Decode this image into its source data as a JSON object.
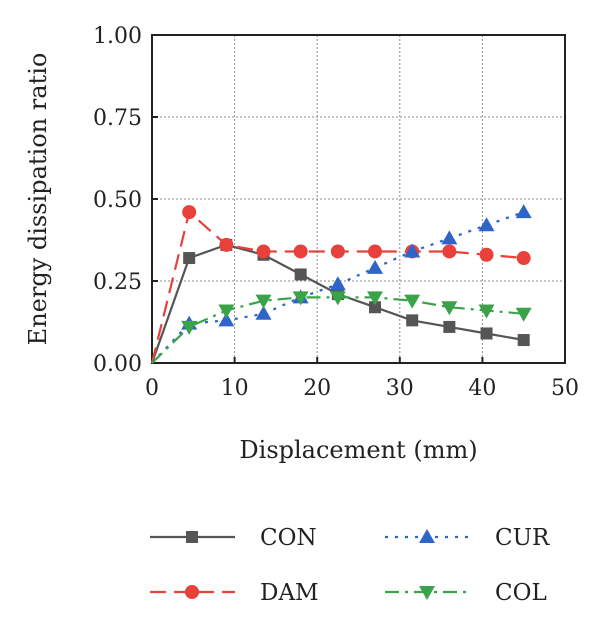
{
  "chart_data": {
    "type": "line",
    "xlabel": "Displacement (mm)",
    "ylabel": "Energy dissipation ratio",
    "xlim": [
      0,
      50
    ],
    "ylim": [
      0,
      1.0
    ],
    "x_ticks": [
      "0",
      "10",
      "20",
      "30",
      "40",
      "50"
    ],
    "y_ticks": [
      "0.00",
      "0.25",
      "0.50",
      "0.75",
      "1.00"
    ],
    "grid": true,
    "legend_position": "bottom",
    "series": [
      {
        "name": "CON",
        "color": "#555555",
        "line_style": "solid",
        "marker": "square",
        "x": [
          0,
          4.5,
          9,
          13.5,
          18,
          22.5,
          27,
          31.5,
          36,
          40.5,
          45
        ],
        "y": [
          0.0,
          0.32,
          0.36,
          0.33,
          0.27,
          0.21,
          0.17,
          0.13,
          0.11,
          0.09,
          0.07
        ]
      },
      {
        "name": "DAM",
        "color": "#e8403a",
        "line_style": "dash",
        "marker": "circle",
        "x": [
          0,
          4.5,
          9,
          13.5,
          18,
          22.5,
          27,
          31.5,
          36,
          40.5,
          45
        ],
        "y": [
          0.0,
          0.46,
          0.36,
          0.34,
          0.34,
          0.34,
          0.34,
          0.34,
          0.34,
          0.33,
          0.32
        ]
      },
      {
        "name": "CUR",
        "color": "#2f64c8",
        "line_style": "dot",
        "marker": "triangle-up",
        "x": [
          0,
          4.5,
          9,
          13.5,
          18,
          22.5,
          27,
          31.5,
          36,
          40.5,
          45
        ],
        "y": [
          0.0,
          0.12,
          0.13,
          0.15,
          0.2,
          0.24,
          0.29,
          0.34,
          0.38,
          0.42,
          0.46
        ]
      },
      {
        "name": "COL",
        "color": "#3aa34a",
        "line_style": "dashdot",
        "marker": "triangle-down",
        "x": [
          0,
          4.5,
          9,
          13.5,
          18,
          22.5,
          27,
          31.5,
          36,
          40.5,
          45
        ],
        "y": [
          0.0,
          0.11,
          0.16,
          0.19,
          0.2,
          0.2,
          0.2,
          0.19,
          0.17,
          0.16,
          0.15
        ]
      }
    ]
  }
}
